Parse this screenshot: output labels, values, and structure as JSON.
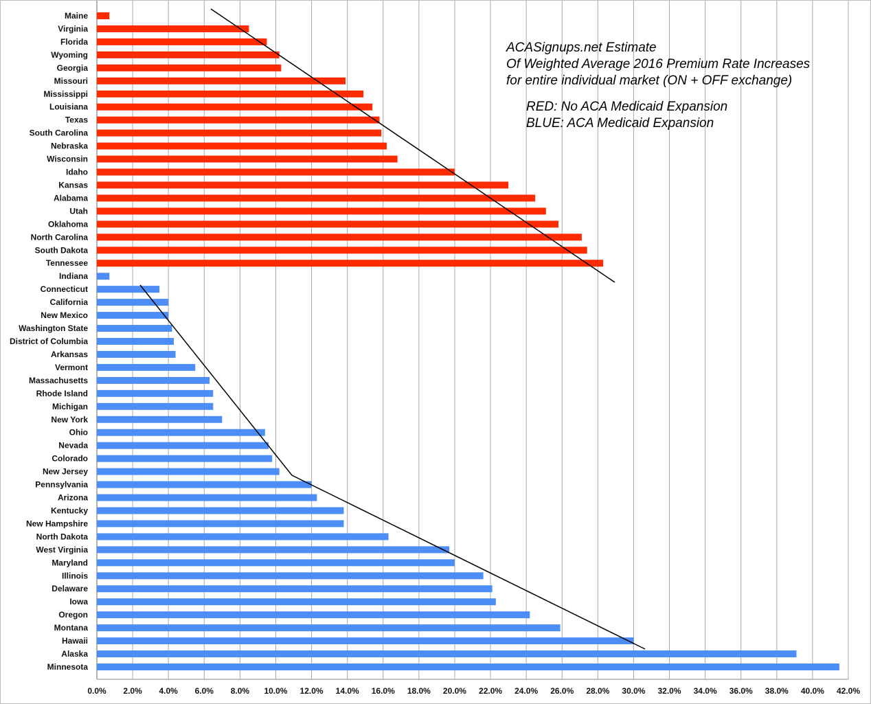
{
  "chart_data": {
    "type": "bar",
    "orientation": "horizontal",
    "title_lines": [
      "ACASignups.net Estimate",
      "Of Weighted Average 2016 Premium Rate Increases",
      "for entire individual market (ON + OFF exchange)"
    ],
    "legend_lines": [
      "RED: No ACA Medicaid Expansion",
      "BLUE: ACA Medicaid Expansion"
    ],
    "xlim": [
      0,
      42
    ],
    "x_ticks": [
      "0.0%",
      "2.0%",
      "4.0%",
      "6.0%",
      "8.0%",
      "10.0%",
      "12.0%",
      "14.0%",
      "16.0%",
      "18.0%",
      "20.0%",
      "22.0%",
      "24.0%",
      "26.0%",
      "28.0%",
      "30.0%",
      "32.0%",
      "34.0%",
      "36.0%",
      "38.0%",
      "40.0%",
      "42.0%"
    ],
    "grid": "vertical",
    "colors": {
      "no_expansion": "#ff2b00",
      "expansion": "#4d8ef6",
      "trendline": "#000000"
    },
    "series": [
      {
        "group": "no_expansion",
        "categories": [
          "Maine",
          "Virginia",
          "Florida",
          "Wyoming",
          "Georgia",
          "Missouri",
          "Mississippi",
          "Louisiana",
          "Texas",
          "South Carolina",
          "Nebraska",
          "Wisconsin",
          "Idaho",
          "Kansas",
          "Alabama",
          "Utah",
          "Oklahoma",
          "North Carolina",
          "South Dakota",
          "Tennessee"
        ],
        "values": [
          0.7,
          8.5,
          9.5,
          10.2,
          10.3,
          13.9,
          14.9,
          15.4,
          15.8,
          15.9,
          16.2,
          16.8,
          20.0,
          23.0,
          24.5,
          25.1,
          25.8,
          27.1,
          27.4,
          28.3
        ]
      },
      {
        "group": "expansion",
        "categories": [
          "Indiana",
          "Connecticut",
          "California",
          "New Mexico",
          "Washington State",
          "District of Columbia",
          "Arkansas",
          "Vermont",
          "Massachusetts",
          "Rhode Island",
          "Michigan",
          "New York",
          "Ohio",
          "Nevada",
          "Colorado",
          "New Jersey",
          "Pennsylvania",
          "Arizona",
          "Kentucky",
          "New Hampshire",
          "North Dakota",
          "West Virginia",
          "Maryland",
          "Illinois",
          "Delaware",
          "Iowa",
          "Oregon",
          "Montana",
          "Hawaii",
          "Alaska",
          "Minnesota"
        ],
        "values": [
          0.7,
          3.5,
          4.0,
          4.0,
          4.2,
          4.3,
          4.4,
          5.5,
          6.3,
          6.5,
          6.5,
          7.0,
          9.4,
          9.6,
          9.8,
          10.2,
          12.0,
          12.3,
          13.8,
          13.8,
          16.3,
          19.7,
          20.0,
          21.6,
          22.1,
          22.3,
          24.2,
          25.9,
          30.0,
          39.1,
          41.5
        ]
      }
    ]
  }
}
